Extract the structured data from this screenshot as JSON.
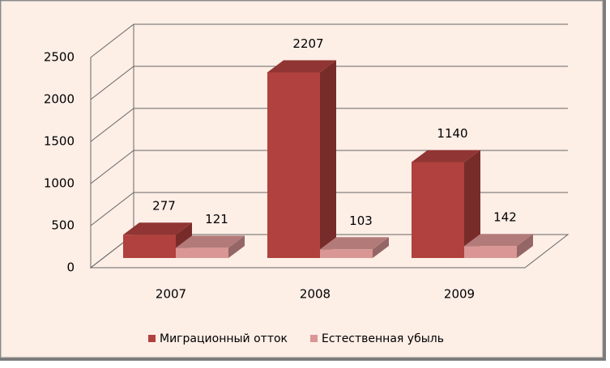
{
  "chart_data": {
    "type": "bar3d",
    "categories": [
      "2007",
      "2008",
      "2009"
    ],
    "series": [
      {
        "name": "Миграционный отток",
        "color": "#b0413e",
        "values": [
          277,
          2207,
          1140
        ]
      },
      {
        "name": "Естественная убыль",
        "color": "#d99694",
        "values": [
          121,
          103,
          142
        ]
      }
    ],
    "ylim": [
      0,
      2500
    ],
    "yticks": [
      0,
      500,
      1000,
      1500,
      2000,
      2500
    ],
    "grid": true,
    "legend": "bottom"
  }
}
